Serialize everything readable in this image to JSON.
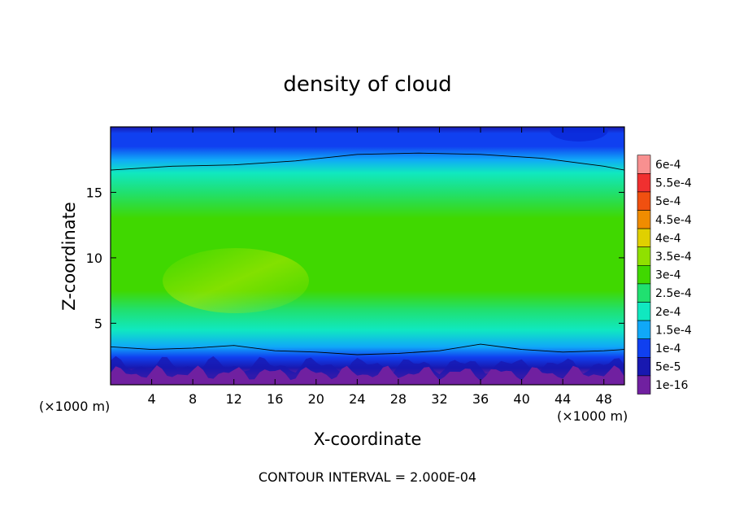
{
  "chart_data": {
    "type": "heatmap",
    "title": "density of cloud",
    "xlabel": "X-coordinate",
    "ylabel": "Z-coordinate",
    "x_unit_left": "(×1000 m)",
    "x_unit_right": "(×1000 m)",
    "xlim": [
      0,
      50
    ],
    "ylim": [
      0.3,
      20
    ],
    "x_ticks": [
      4,
      8,
      12,
      16,
      20,
      24,
      28,
      32,
      36,
      40,
      44,
      48
    ],
    "x_tick_labels": [
      "4",
      "8",
      "12",
      "16",
      "20",
      "24",
      "28",
      "32",
      "36",
      "40",
      "44",
      "48"
    ],
    "y_ticks": [
      5,
      10,
      15
    ],
    "y_tick_labels": [
      "5",
      "10",
      "15"
    ],
    "footer": "CONTOUR INTERVAL = 2.000E-04",
    "colorbar": {
      "labels": [
        "6e-4",
        "5.5e-4",
        "5e-4",
        "4.5e-4",
        "4e-4",
        "3.5e-4",
        "3e-4",
        "2.5e-4",
        "2e-4",
        "1.5e-4",
        "1e-4",
        "5e-5",
        "1e-16"
      ],
      "colors": [
        "#f89090",
        "#f03030",
        "#f05010",
        "#f08c00",
        "#e0d000",
        "#90e000",
        "#40d800",
        "#20e070",
        "#10e8c0",
        "#10a8f8",
        "#1040f0",
        "#1818b0",
        "#7020a0"
      ]
    },
    "profile": {
      "z": [
        1.0,
        1.6,
        2.4,
        3.2,
        4.5,
        6.0,
        7.5,
        9.0,
        11.0,
        13.0,
        15.0,
        16.5,
        17.5,
        18.5,
        19.5,
        20.0
      ],
      "density": [
        1e-16,
        5e-05,
        0.0001,
        0.00016,
        0.00021,
        0.00026,
        0.00031,
        0.00033,
        0.00032,
        0.0003,
        0.00026,
        0.00021,
        0.00017,
        0.00013,
        0.0001,
        8e-05
      ]
    },
    "contour_lines": [
      {
        "level": 0.0002,
        "x": [
          0,
          6,
          12,
          18,
          24,
          30,
          36,
          42,
          48,
          50
        ],
        "z": [
          16.7,
          17.0,
          17.1,
          17.4,
          17.9,
          18.0,
          17.9,
          17.6,
          17.0,
          16.7
        ]
      },
      {
        "level": 0.0002,
        "x": [
          0,
          4,
          8,
          12,
          16,
          20,
          24,
          28,
          32,
          36,
          40,
          44,
          48,
          50
        ],
        "z": [
          3.2,
          3.0,
          3.1,
          3.3,
          2.9,
          2.8,
          2.6,
          2.7,
          2.9,
          3.4,
          3.0,
          2.8,
          2.9,
          3.0
        ]
      }
    ]
  }
}
